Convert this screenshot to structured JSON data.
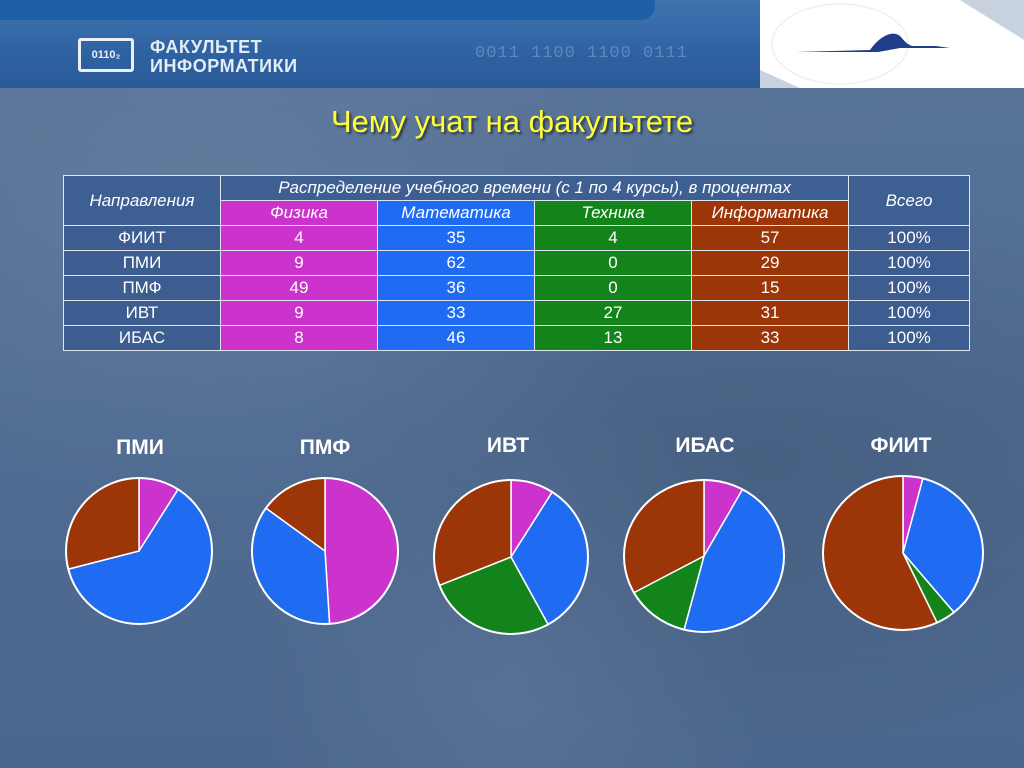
{
  "header": {
    "logo_mark": "0110₂",
    "logo_line1": "ФАКУЛЬТЕТ",
    "logo_line2": "ИНФОРМАТИКИ",
    "binary": "0011 1100 1100 0111"
  },
  "title": "Чему учат на факультете",
  "table": {
    "col_directions": "Направления",
    "col_group": "Распределение учебного времени (с 1 по 4 курсы), в процентах",
    "col_total": "Всего",
    "subjects": [
      "Физика",
      "Математика",
      "Техника",
      "Информатика"
    ],
    "rows": [
      {
        "name": "ФИИТ",
        "values": [
          "4",
          "35",
          "4",
          "57"
        ],
        "total": "100%"
      },
      {
        "name": "ПМИ",
        "values": [
          "9",
          "62",
          "0",
          "29"
        ],
        "total": "100%"
      },
      {
        "name": "ПМФ",
        "values": [
          "49",
          "36",
          "0",
          "15"
        ],
        "total": "100%"
      },
      {
        "name": "ИВТ",
        "values": [
          "9",
          "33",
          "27",
          "31"
        ],
        "total": "100%"
      },
      {
        "name": "ИБАС",
        "values": [
          "8",
          "46",
          "13",
          "33"
        ],
        "total": "100%"
      }
    ]
  },
  "colors": {
    "physics": "#cc33cc",
    "math": "#1f6cf2",
    "tech": "#13841b",
    "informatics": "#9c3508",
    "header_cell": "#3e5f92",
    "body_cell": "#3d5c90",
    "title": "#ffff3a"
  },
  "chart_data": [
    {
      "type": "pie",
      "title": "ПМИ",
      "categories": [
        "Физика",
        "Математика",
        "Техника",
        "Информатика"
      ],
      "values": [
        9,
        62,
        0,
        29
      ]
    },
    {
      "type": "pie",
      "title": "ПМФ",
      "categories": [
        "Физика",
        "Математика",
        "Техника",
        "Информатика"
      ],
      "values": [
        49,
        36,
        0,
        15
      ]
    },
    {
      "type": "pie",
      "title": "ИВТ",
      "categories": [
        "Физика",
        "Математика",
        "Техника",
        "Информатика"
      ],
      "values": [
        9,
        33,
        27,
        31
      ]
    },
    {
      "type": "pie",
      "title": "ИБАС",
      "categories": [
        "Физика",
        "Математика",
        "Техника",
        "Информатика"
      ],
      "values": [
        8,
        46,
        13,
        33
      ]
    },
    {
      "type": "pie",
      "title": "ФИИТ",
      "categories": [
        "Физика",
        "Математика",
        "Техника",
        "Информатика"
      ],
      "values": [
        4,
        35,
        4,
        57
      ]
    }
  ]
}
